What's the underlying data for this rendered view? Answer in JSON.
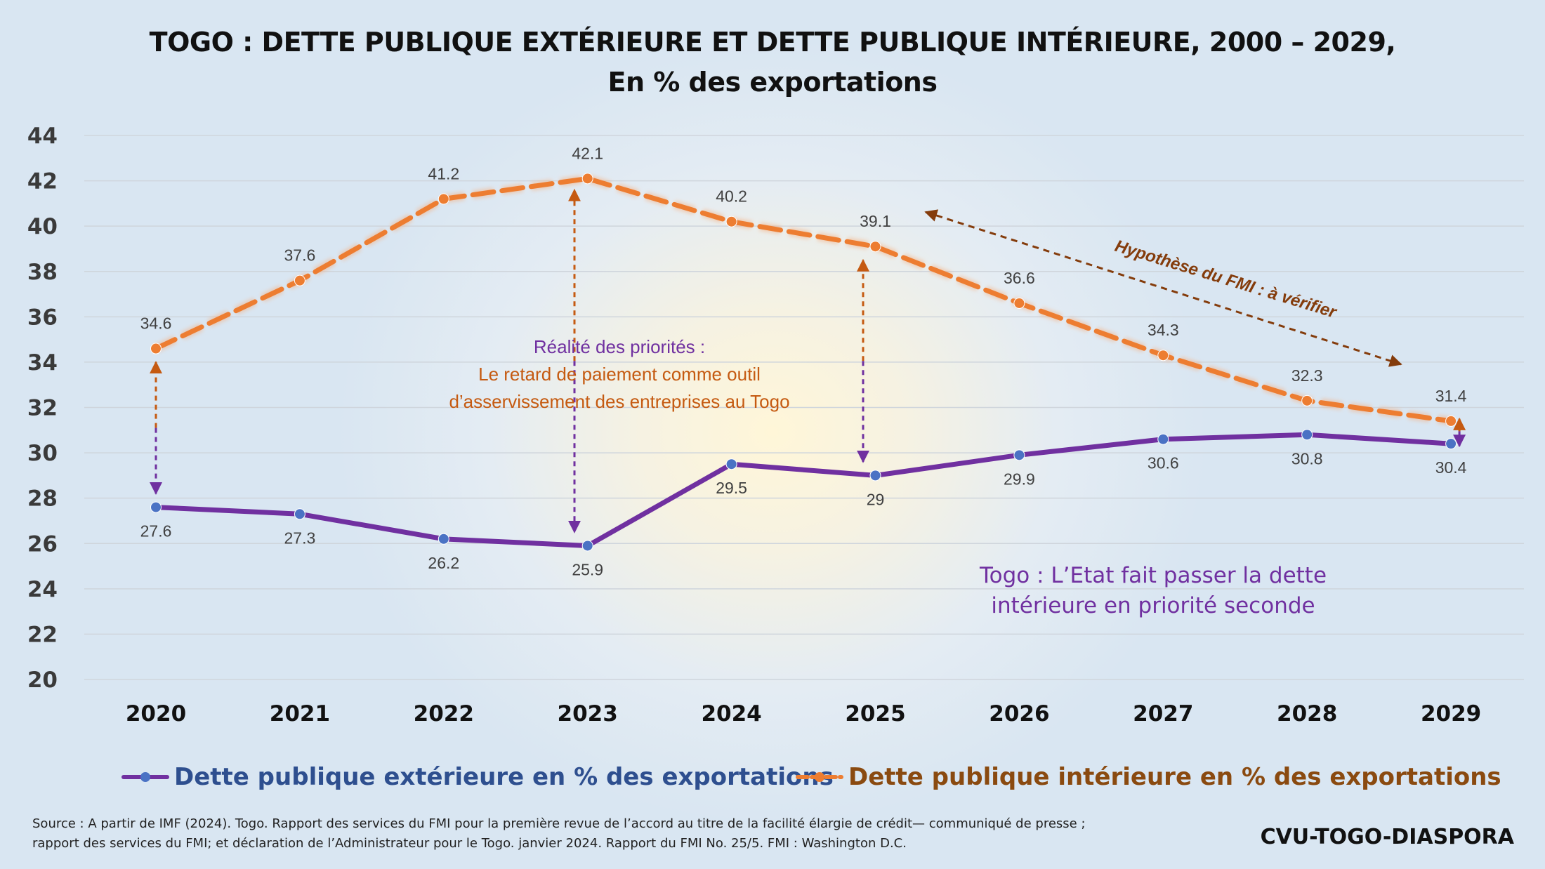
{
  "title_line1": "TOGO : DETTE PUBLIQUE EXTÉRIEURE ET DETTE PUBLIQUE INTÉRIEURE, 2000 – 2029,",
  "title_line2": "En % des exportations",
  "source": "Source : A partir de IMF (2024). Togo. Rapport des services du FMI pour la première revue de l’accord au titre de la facilité élargie de crédit— communiqué de presse ; rapport des services du FMI; et déclaration de l’Administrateur pour le Togo. janvier 2024. Rapport du FMI No. 25/5.  FMI : Washington D.C.",
  "brand": "CVU-TOGO-DIASPORA",
  "annotations": {
    "priorities_title": "Réalité des priorités :",
    "priorities_line1": "Le retard de paiement comme outil",
    "priorities_line2": "d’asservissement des entreprises au Togo",
    "imf_hypothesis": "Hypothèse du FMI : à vérifier",
    "state_line1": "Togo : L’Etat fait passer la dette",
    "state_line2": "intérieure en priorité seconde"
  },
  "colors": {
    "external": "#7030a0",
    "external_marker": "#4a72c4",
    "internal": "#ed7d31",
    "internal_marker": "#ed7d31",
    "arrow_orange": "#c55a11",
    "arrow_purple": "#7030a0",
    "arrow_brown": "#843c0c",
    "grid": "#cfd5dc"
  },
  "chart_data": {
    "type": "line",
    "categories": [
      "2020",
      "2021",
      "2022",
      "2023",
      "2024",
      "2025",
      "2026",
      "2027",
      "2028",
      "2029"
    ],
    "series": [
      {
        "name": "Dette publique extérieure en % des exportations",
        "values": [
          27.6,
          27.3,
          26.2,
          25.9,
          29.5,
          29,
          29.9,
          30.6,
          30.8,
          30.4
        ],
        "labels": [
          "27.6",
          "27.3",
          "26.2",
          "25.9",
          "29.5",
          "29",
          "29.9",
          "30.6",
          "30.8",
          "30.4"
        ],
        "style": "solid"
      },
      {
        "name": "Dette publique intérieure en % des exportations",
        "values": [
          34.6,
          37.6,
          41.2,
          42.1,
          40.2,
          39.1,
          36.6,
          34.3,
          32.3,
          31.4
        ],
        "labels": [
          "34.6",
          "37.6",
          "41.2",
          "42.1",
          "40.2",
          "39.1",
          "36.6",
          "34.3",
          "32.3",
          "31.4"
        ],
        "style": "dashed"
      }
    ],
    "ylim": [
      20,
      44
    ],
    "yticks": [
      "20",
      "22",
      "24",
      "26",
      "28",
      "30",
      "32",
      "34",
      "36",
      "38",
      "40",
      "42",
      "44"
    ],
    "grid": true,
    "legend_position": "bottom"
  }
}
